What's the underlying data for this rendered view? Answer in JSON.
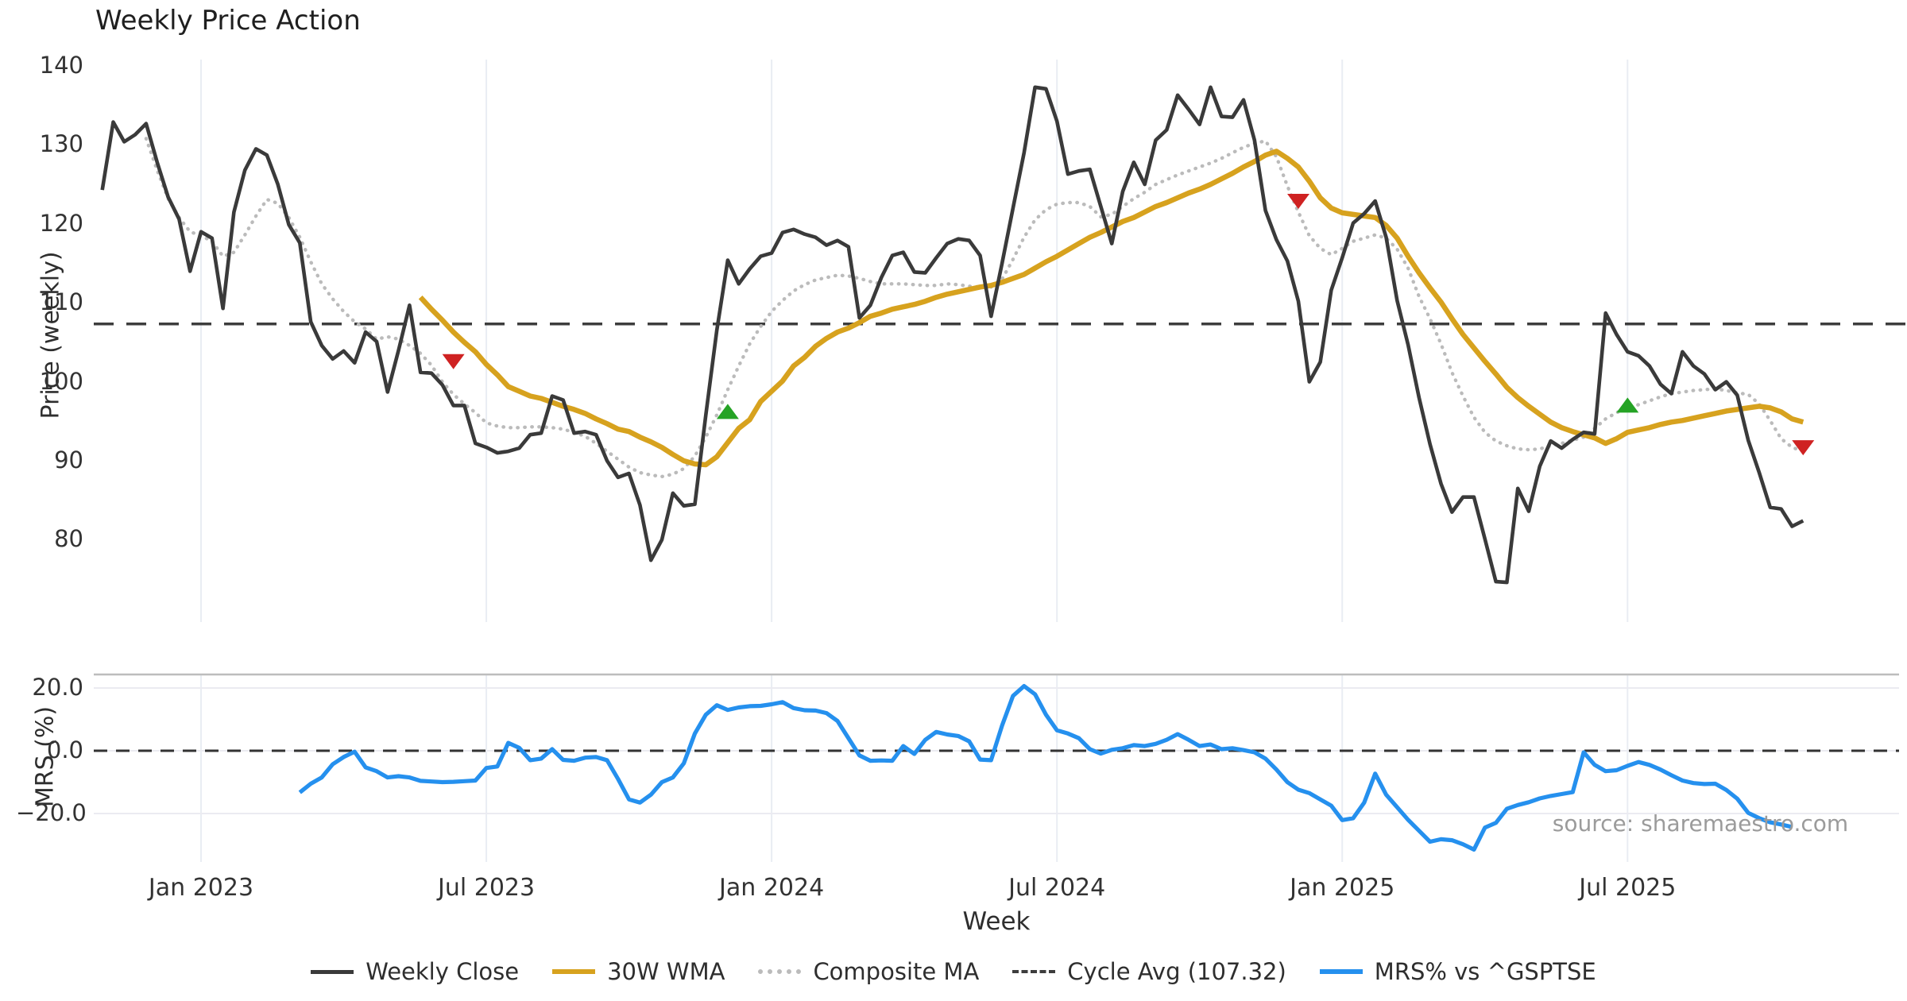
{
  "title": "Weekly Price Action",
  "source_note": "source: sharemaestro.com",
  "xlabel": "Week",
  "ylabel_price": "Price (weekly)",
  "ylabel_mrs": "MRS (%)",
  "colors": {
    "weekly_close": "#3a3a3a",
    "wma": "#d7a21e",
    "composite": "#bbbbbb",
    "cycle_avg": "#3d3d3d",
    "mrs": "#2590ee",
    "sell_marker": "#cf2222",
    "buy_marker": "#25a325",
    "gridline": "#e9edf3",
    "panel_spine": "#bdbdbd"
  },
  "legend": {
    "items": [
      {
        "label": "Weekly Close",
        "swatch": "solid",
        "color": "#3a3a3a"
      },
      {
        "label": "30W WMA",
        "swatch": "solid",
        "color": "#d7a21e"
      },
      {
        "label": "Composite MA",
        "swatch": "dotted",
        "color": "#bbbbbb"
      },
      {
        "label": "Cycle Avg (107.32)",
        "swatch": "dashed",
        "color": "#3d3d3d"
      },
      {
        "label": "MRS% vs ^GSPTSE",
        "swatch": "solid",
        "color": "#2590ee"
      }
    ]
  },
  "chart_data": {
    "type": "line",
    "x_unit": "week_index",
    "weeks_total": 156,
    "xlabel": "Week",
    "x_ticks": [
      {
        "week": 9,
        "label": "Jan 2023"
      },
      {
        "week": 35,
        "label": "Jul 2023"
      },
      {
        "week": 61,
        "label": "Jan 2024"
      },
      {
        "week": 87,
        "label": "Jul 2024"
      },
      {
        "week": 113,
        "label": "Jan 2025"
      },
      {
        "week": 139,
        "label": "Jul 2025"
      }
    ],
    "panels": [
      {
        "name": "price",
        "ylabel": "Price (weekly)",
        "ylim": [
          69.5,
          141.5
        ],
        "yticks": [
          140,
          130,
          120,
          110,
          100,
          90,
          80
        ],
        "ytick_labels": [
          "140",
          "130",
          "120",
          "110",
          "100",
          "90",
          "80"
        ],
        "cycle_avg": 107.32,
        "grid": "vertical-only",
        "series": [
          {
            "name": "Weekly Close",
            "style": "solid",
            "color": "#3a3a3a",
            "start_week": 0,
            "values": [
              124.3,
              132.9,
              130.4,
              131.3,
              132.7,
              127.8,
              123.4,
              120.6,
              114.0,
              119.0,
              118.2,
              109.3,
              121.5,
              126.8,
              129.5,
              128.7,
              125.0,
              119.9,
              117.6,
              107.6,
              104.6,
              102.9,
              103.9,
              102.4,
              106.3,
              105.1,
              98.7,
              104.0,
              109.7,
              101.2,
              101.1,
              99.6,
              97.0,
              97.0,
              92.2,
              91.7,
              91.0,
              91.2,
              91.6,
              93.3,
              93.5,
              98.2,
              97.7,
              93.5,
              93.7,
              93.3,
              90.0,
              87.9,
              88.4,
              84.4,
              77.4,
              80.0,
              85.9,
              84.3,
              84.5,
              95.8,
              106.5,
              115.4,
              112.4,
              114.3,
              115.9,
              116.3,
              118.9,
              119.3,
              118.7,
              118.3,
              117.3,
              117.9,
              117.1,
              108.1,
              109.7,
              113.2,
              116.0,
              116.4,
              113.9,
              113.8,
              115.7,
              117.5,
              118.1,
              117.9,
              116.0,
              108.3,
              115.0,
              122.0,
              129.0,
              137.3,
              137.1,
              133.0,
              126.3,
              126.7,
              126.9,
              122.2,
              117.5,
              124.1,
              127.8,
              125.0,
              130.6,
              131.9,
              136.3,
              134.5,
              132.6,
              137.3,
              133.6,
              133.5,
              135.7,
              130.6,
              121.7,
              118.0,
              115.3,
              110.2,
              100.0,
              102.5,
              111.6,
              115.7,
              120.1,
              121.3,
              122.9,
              118.3,
              110.3,
              104.7,
              98.0,
              92.1,
              87.1,
              83.5,
              85.4,
              85.4,
              80.1,
              74.7,
              74.6,
              86.5,
              83.6,
              89.3,
              92.5,
              91.6,
              92.7,
              93.6,
              93.4,
              108.7,
              106.0,
              103.8,
              103.3,
              102.0,
              99.7,
              98.5,
              103.8,
              102.0,
              101.0,
              99.0,
              100.0,
              98.3,
              92.6,
              88.5,
              84.1,
              83.9,
              81.7,
              82.4
            ]
          },
          {
            "name": "30W WMA",
            "style": "solid",
            "color": "#d7a21e",
            "start_week": 29,
            "values": [
              110.7,
              109.2,
              107.8,
              106.3,
              105.0,
              103.8,
              102.2,
              100.9,
              99.4,
              98.8,
              98.2,
              97.9,
              97.4,
              96.9,
              96.5,
              96.0,
              95.3,
              94.7,
              94.0,
              93.7,
              93.0,
              92.4,
              91.7,
              90.8,
              90.0,
              89.6,
              89.5,
              90.5,
              92.3,
              94.1,
              95.2,
              97.5,
              98.8,
              100.1,
              102.0,
              103.1,
              104.5,
              105.5,
              106.3,
              106.8,
              107.5,
              108.3,
              108.7,
              109.2,
              109.5,
              109.8,
              110.2,
              110.7,
              111.1,
              111.4,
              111.7,
              112.0,
              112.2,
              112.6,
              113.1,
              113.6,
              114.4,
              115.2,
              115.9,
              116.7,
              117.5,
              118.3,
              118.9,
              119.6,
              120.3,
              120.8,
              121.5,
              122.2,
              122.7,
              123.3,
              123.9,
              124.4,
              125.0,
              125.7,
              126.4,
              127.2,
              127.9,
              128.7,
              129.2,
              128.3,
              127.2,
              125.4,
              123.3,
              122.0,
              121.4,
              121.2,
              121.0,
              120.8,
              119.8,
              118.2,
              115.9,
              113.8,
              111.9,
              110.1,
              108.0,
              106.0,
              104.3,
              102.6,
              101.0,
              99.3,
              98.0,
              96.9,
              95.9,
              94.9,
              94.2,
              93.7,
              93.3,
              92.9,
              92.2,
              92.8,
              93.6,
              93.9,
              94.2,
              94.6,
              94.9,
              95.1,
              95.4,
              95.7,
              96.0,
              96.3,
              96.5,
              96.7,
              96.9,
              96.7,
              96.2,
              95.3,
              94.9
            ]
          },
          {
            "name": "Composite MA",
            "style": "dotted",
            "color": "#bbbbbb",
            "start_week": 4,
            "values": [
              130.8,
              126.8,
              123.2,
              120.8,
              119.0,
              118.5,
              117.8,
              115.9,
              116.4,
              118.6,
              121.0,
              123.1,
              122.6,
              120.8,
              118.3,
              115.2,
              112.4,
              110.5,
              108.9,
              107.6,
              106.7,
              105.4,
              105.7,
              105.4,
              104.6,
              103.6,
              102.1,
              100.0,
              98.4,
              97.2,
              96.1,
              94.8,
              94.4,
              94.2,
              94.2,
              94.3,
              94.3,
              94.2,
              94.0,
              93.6,
              93.1,
              92.2,
              91.2,
              90.2,
              89.2,
              88.5,
              88.2,
              88.0,
              88.3,
              89.0,
              90.6,
              93.0,
              95.8,
              99.0,
              102.0,
              104.8,
              107.0,
              108.9,
              110.3,
              111.5,
              112.3,
              112.9,
              113.2,
              113.5,
              113.4,
              113.1,
              112.7,
              112.4,
              112.4,
              112.4,
              112.3,
              112.2,
              112.2,
              112.4,
              112.3,
              112.1,
              112.0,
              112.0,
              113.0,
              115.5,
              118.3,
              120.5,
              121.8,
              122.5,
              122.7,
              122.7,
              122.2,
              120.9,
              121.2,
              122.2,
              123.2,
              124.0,
              125.0,
              125.6,
              126.2,
              126.7,
              127.2,
              127.7,
              128.3,
              129.0,
              129.7,
              130.2,
              130.5,
              128.5,
              124.8,
              121.5,
              118.5,
              116.9,
              116.1,
              116.9,
              117.8,
              118.2,
              118.6,
              118.2,
              116.8,
              114.4,
              110.8,
              108.0,
              104.8,
              101.2,
              98.2,
              95.5,
              93.6,
              92.5,
              91.9,
              91.5,
              91.4,
              91.5,
              91.9,
              92.2,
              92.6,
              93.0,
              94.1,
              95.3,
              96.1,
              96.7,
              97.1,
              97.6,
              98.1,
              98.5,
              98.7,
              98.9,
              99.0,
              99.1,
              98.9,
              98.6,
              98.4,
              97.2,
              95.1,
              92.8,
              91.7,
              91.2
            ]
          }
        ],
        "markers": {
          "sell": [
            {
              "week": 32,
              "price": 102.6
            },
            {
              "week": 109,
              "price": 122.9
            },
            {
              "week": 155,
              "price": 91.7
            }
          ],
          "buy": [
            {
              "week": 57,
              "price": 96.2
            },
            {
              "week": 139,
              "price": 97.0
            }
          ]
        }
      },
      {
        "name": "mrs",
        "ylabel": "MRS (%)",
        "ylim": [
          -33,
          24
        ],
        "yticks": [
          20,
          0,
          -20
        ],
        "ytick_labels": [
          "20.0",
          "0.0",
          "−20.0"
        ],
        "zero_dashed_line": 0.0,
        "series": [
          {
            "name": "MRS% vs ^GSPTSE",
            "style": "solid",
            "color": "#2590ee",
            "start_week": 18,
            "values": [
              -13.3,
              -10.5,
              -8.5,
              -4.3,
              -2.0,
              -0.3,
              -5.3,
              -6.5,
              -8.5,
              -8.1,
              -8.5,
              -9.6,
              -9.8,
              -10.0,
              -9.9,
              -9.7,
              -9.5,
              -5.5,
              -5.0,
              2.5,
              0.9,
              -3.0,
              -2.5,
              0.5,
              -2.9,
              -3.2,
              -2.2,
              -2.0,
              -3.0,
              -9.0,
              -15.5,
              -16.5,
              -14.0,
              -10.0,
              -8.5,
              -4.0,
              5.5,
              11.5,
              14.5,
              13.0,
              13.8,
              14.2,
              14.3,
              14.8,
              15.5,
              13.6,
              12.9,
              12.8,
              12.0,
              9.5,
              4.0,
              -1.5,
              -3.2,
              -3.1,
              -3.2,
              1.5,
              -1.0,
              3.5,
              6.0,
              5.2,
              4.7,
              3.0,
              -2.8,
              -3.0,
              8.0,
              17.5,
              20.6,
              18.0,
              11.5,
              6.5,
              5.5,
              4.0,
              0.5,
              -0.9,
              0.3,
              0.8,
              1.8,
              1.5,
              2.2,
              3.5,
              5.3,
              3.5,
              1.5,
              2.0,
              0.5,
              0.8,
              0.2,
              -0.5,
              -2.5,
              -6.0,
              -10.0,
              -12.4,
              -13.5,
              -15.5,
              -17.5,
              -22.1,
              -21.5,
              -16.5,
              -7.3,
              -14.0,
              -18.0,
              -22.0,
              -25.5,
              -29.0,
              -28.2,
              -28.5,
              -29.8,
              -31.5,
              -24.5,
              -23.0,
              -18.5,
              -17.3,
              -16.4,
              -15.2,
              -14.4,
              -13.8,
              -13.2,
              -0.5,
              -4.5,
              -6.5,
              -6.2,
              -4.8,
              -3.6,
              -4.5,
              -6.0,
              -7.8,
              -9.5,
              -10.3,
              -10.6,
              -10.5,
              -12.5,
              -15.3,
              -19.8,
              -21.5,
              -22.8,
              -23.5,
              -24.3
            ]
          }
        ]
      }
    ]
  }
}
